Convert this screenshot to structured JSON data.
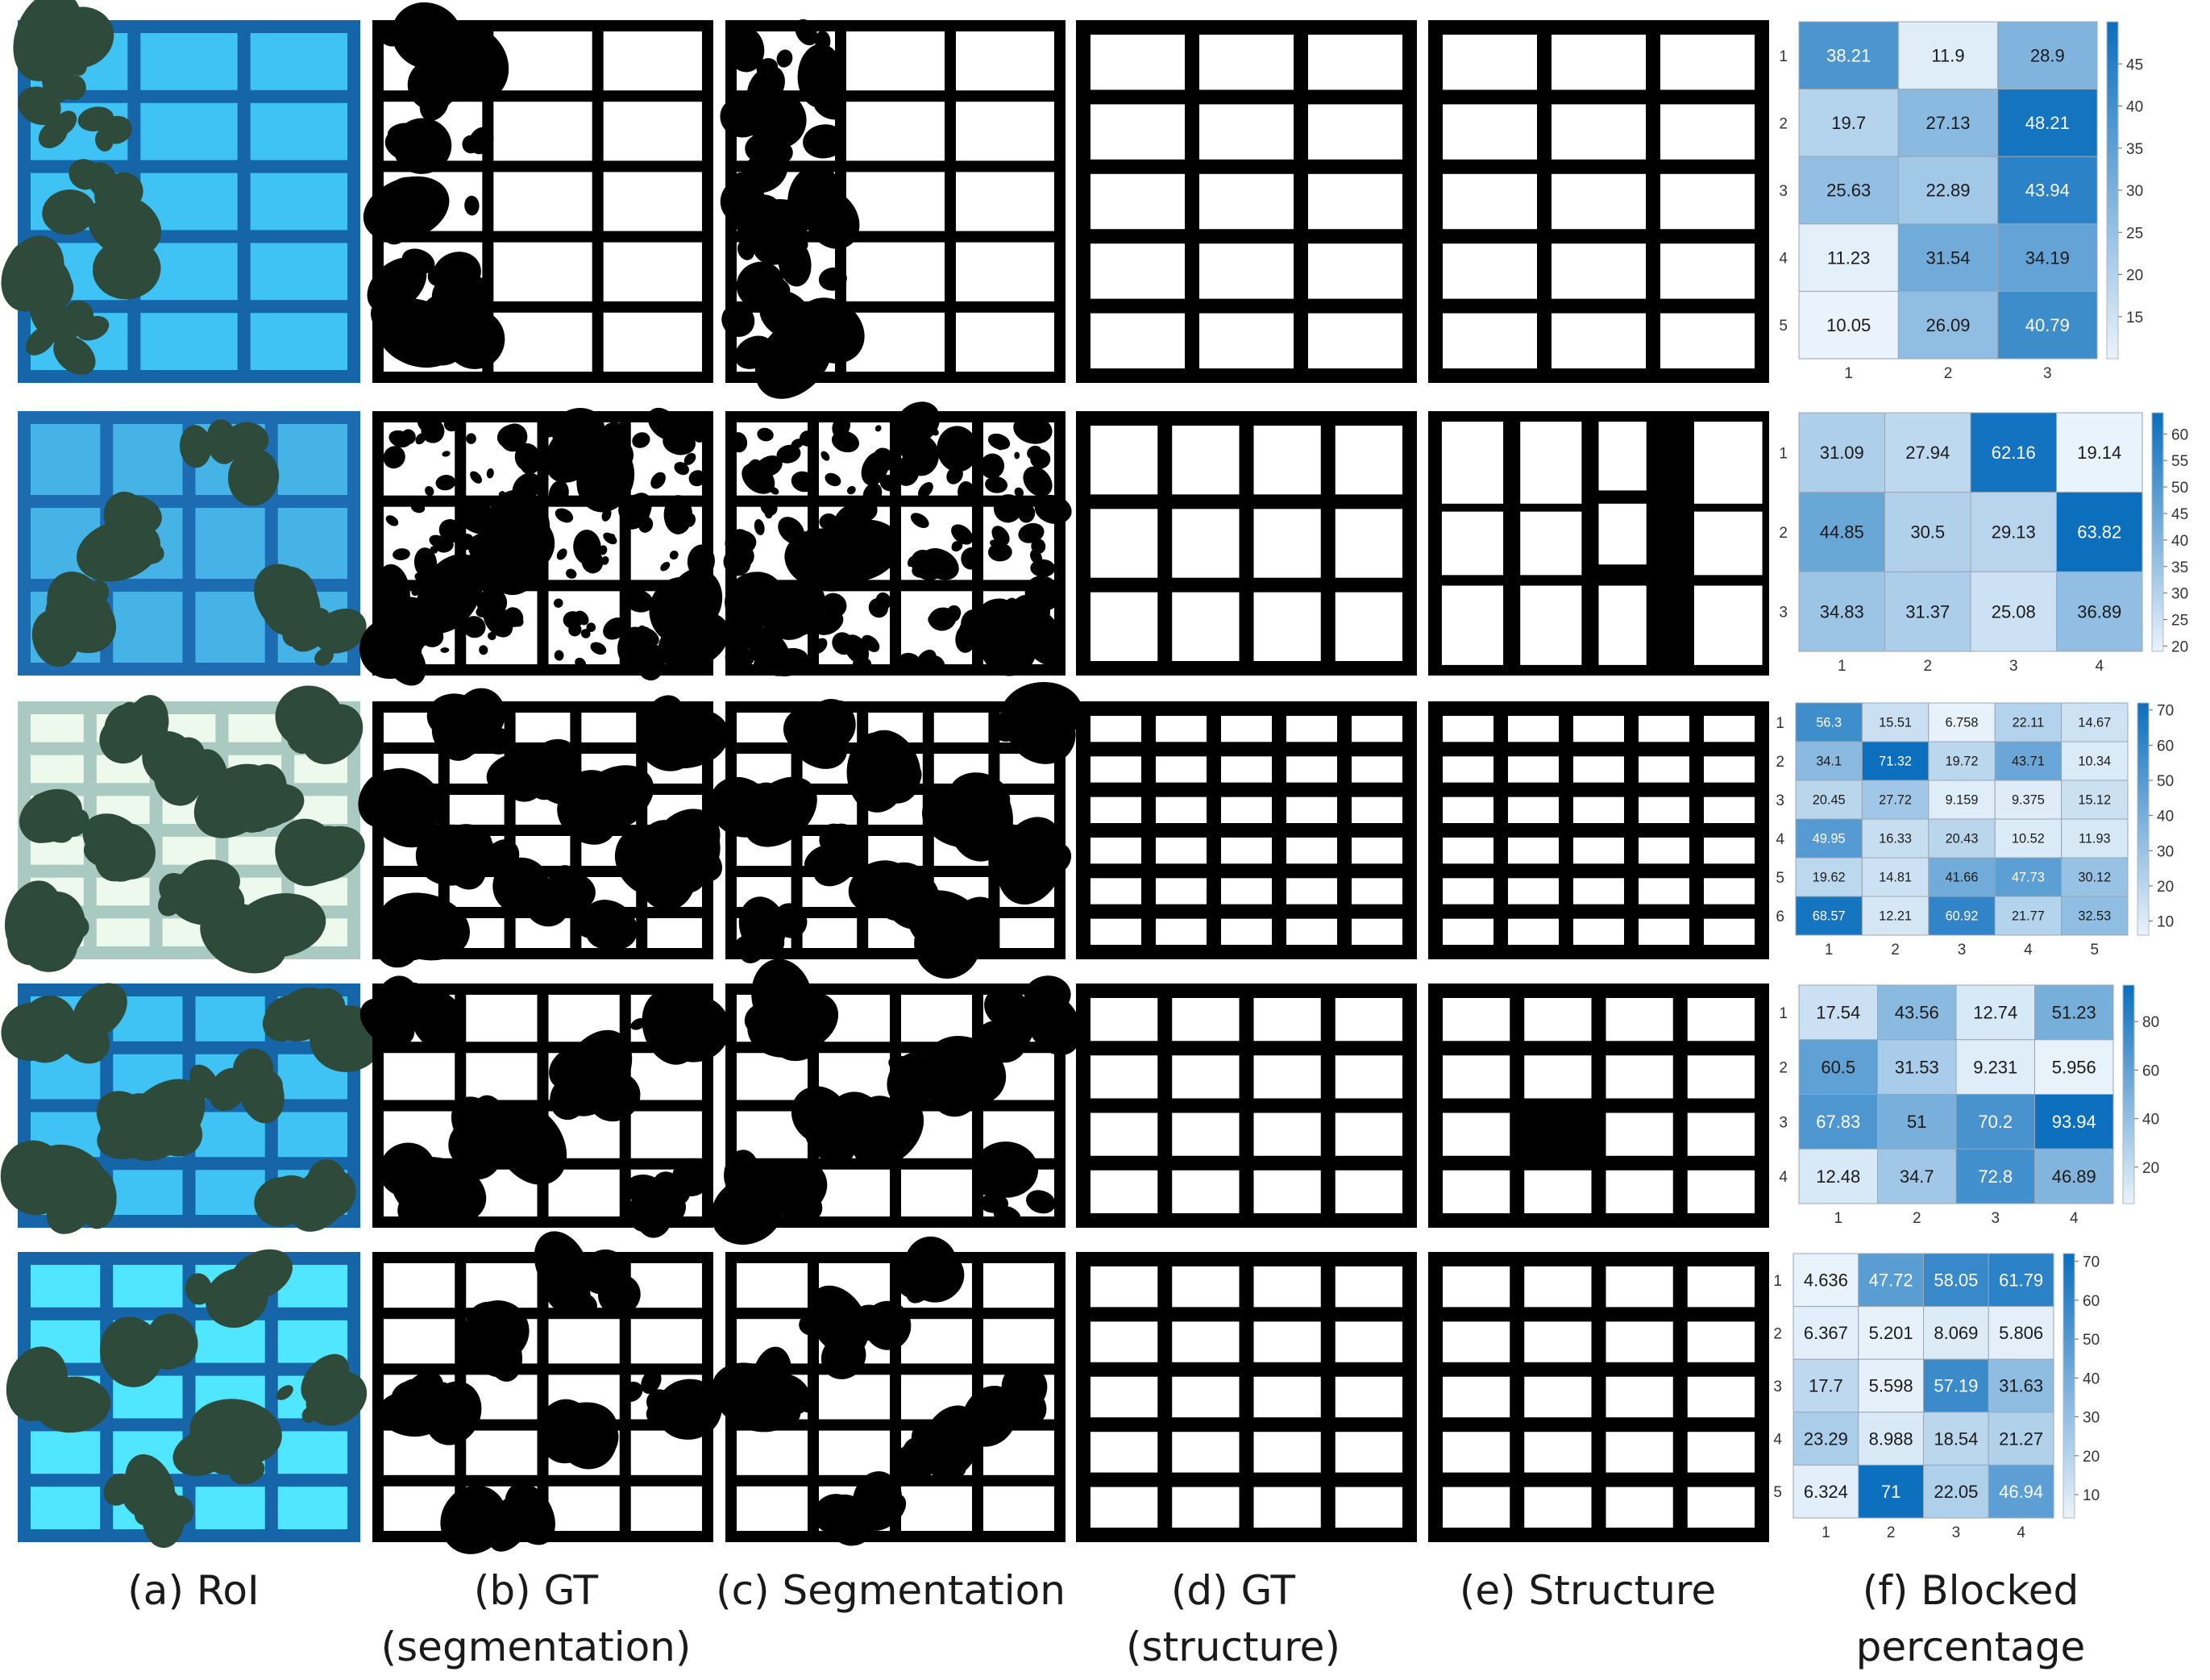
{
  "colors": {
    "roi_blue_frame": "#1565a8",
    "roi_blue_cell": "#3fc2f4",
    "roi_cyan_cell": "#50e6ff",
    "roi_pale_frame": "#a9c9c1",
    "roi_pale_cell": "#eef9ee",
    "roi_blurry_frame": "#1d6bb0",
    "roi_blurry_cell": "#45b3e6",
    "plant": "#2d4a3a",
    "heat_low": "#eaf3fb",
    "heat_high": "#0a6ebd"
  },
  "captions": [
    {
      "id": "a",
      "lines": [
        "(a) RoI"
      ]
    },
    {
      "id": "b",
      "lines": [
        "(b) GT",
        "(segmentation)"
      ]
    },
    {
      "id": "c",
      "lines": [
        "(c) Segmentation"
      ]
    },
    {
      "id": "d",
      "lines": [
        "(d) GT",
        "(structure)"
      ]
    },
    {
      "id": "e",
      "lines": [
        "(e) Structure"
      ]
    },
    {
      "id": "f",
      "lines": [
        "(f) Blocked",
        "percentage"
      ]
    }
  ],
  "chart_data": [
    {
      "type": "heatmap",
      "row_labels": [
        "1",
        "2",
        "3",
        "4",
        "5"
      ],
      "col_labels": [
        "1",
        "2",
        "3"
      ],
      "values": [
        [
          "38.21",
          "11.9",
          "28.9"
        ],
        [
          "19.7",
          "27.13",
          "48.21"
        ],
        [
          "25.63",
          "22.89",
          "43.94"
        ],
        [
          "11.23",
          "31.54",
          "34.19"
        ],
        [
          "10.05",
          "26.09",
          "40.79"
        ]
      ],
      "colorbar_ticks": [
        "15",
        "20",
        "25",
        "30",
        "35",
        "40",
        "45"
      ],
      "colorbar_range": [
        10,
        50
      ]
    },
    {
      "type": "heatmap",
      "row_labels": [
        "1",
        "2",
        "3"
      ],
      "col_labels": [
        "1",
        "2",
        "3",
        "4"
      ],
      "values": [
        [
          "31.09",
          "27.94",
          "62.16",
          "19.14"
        ],
        [
          "44.85",
          "30.5",
          "29.13",
          "63.82"
        ],
        [
          "34.83",
          "31.37",
          "25.08",
          "36.89"
        ]
      ],
      "colorbar_ticks": [
        "20",
        "25",
        "30",
        "35",
        "40",
        "45",
        "50",
        "55",
        "60"
      ],
      "colorbar_range": [
        19,
        64
      ]
    },
    {
      "type": "heatmap",
      "row_labels": [
        "1",
        "2",
        "3",
        "4",
        "5",
        "6"
      ],
      "col_labels": [
        "1",
        "2",
        "3",
        "4",
        "5"
      ],
      "values": [
        [
          "56.3",
          "15.51",
          "6.758",
          "22.11",
          "14.67"
        ],
        [
          "34.1",
          "71.32",
          "19.72",
          "43.71",
          "10.34"
        ],
        [
          "20.45",
          "27.72",
          "9.159",
          "9.375",
          "15.12"
        ],
        [
          "49.95",
          "16.33",
          "20.43",
          "10.52",
          "11.93"
        ],
        [
          "19.62",
          "14.81",
          "41.66",
          "47.73",
          "30.12"
        ],
        [
          "68.57",
          "12.21",
          "60.92",
          "21.77",
          "32.53"
        ]
      ],
      "colorbar_ticks": [
        "10",
        "20",
        "30",
        "40",
        "50",
        "60",
        "70"
      ],
      "colorbar_range": [
        6,
        72
      ]
    },
    {
      "type": "heatmap",
      "row_labels": [
        "1",
        "2",
        "3",
        "4"
      ],
      "col_labels": [
        "1",
        "2",
        "3",
        "4"
      ],
      "values": [
        [
          "17.54",
          "43.56",
          "12.74",
          "51.23"
        ],
        [
          "60.5",
          "31.53",
          "9.231",
          "5.956"
        ],
        [
          "67.83",
          "51",
          "70.2",
          "93.94"
        ],
        [
          "12.48",
          "34.7",
          "72.8",
          "46.89"
        ]
      ],
      "colorbar_ticks": [
        "20",
        "40",
        "60",
        "80"
      ],
      "colorbar_range": [
        5,
        95
      ]
    },
    {
      "type": "heatmap",
      "row_labels": [
        "1",
        "2",
        "3",
        "4",
        "5"
      ],
      "col_labels": [
        "1",
        "2",
        "3",
        "4"
      ],
      "values": [
        [
          "4.636",
          "47.72",
          "58.05",
          "61.79"
        ],
        [
          "6.367",
          "5.201",
          "8.069",
          "5.806"
        ],
        [
          "17.7",
          "5.598",
          "57.19",
          "31.63"
        ],
        [
          "23.29",
          "8.988",
          "18.54",
          "21.27"
        ],
        [
          "6.324",
          "71",
          "22.05",
          "46.94"
        ]
      ],
      "colorbar_ticks": [
        "10",
        "20",
        "30",
        "40",
        "50",
        "60",
        "70"
      ],
      "colorbar_range": [
        4,
        72
      ]
    }
  ]
}
